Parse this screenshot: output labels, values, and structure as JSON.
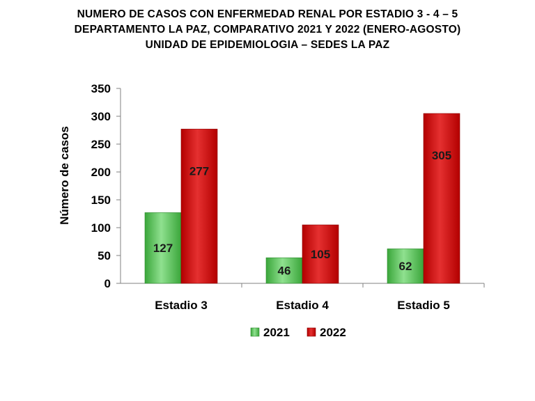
{
  "title_lines": [
    "NUMERO DE CASOS CON ENFERMEDAD RENAL POR ESTADIO 3 - 4 – 5",
    "DEPARTAMENTO LA PAZ, COMPARATIVO 2021 Y 2022 (ENERO-AGOSTO)",
    "UNIDAD DE EPIDEMIOLOGIA – SEDES LA PAZ"
  ],
  "chart_data": {
    "type": "bar",
    "title": "NUMERO DE CASOS CON ENFERMEDAD RENAL POR ESTADIO 3 - 4 – 5 DEPARTAMENTO LA PAZ, COMPARATIVO 2021 Y 2022 (ENERO-AGOSTO) UNIDAD DE EPIDEMIOLOGIA – SEDES LA PAZ",
    "categories": [
      "Estadio 3",
      "Estadio 4",
      "Estadio 5"
    ],
    "series": [
      {
        "name": "2021",
        "values": [
          127,
          46,
          62
        ],
        "color": "#4cbb4c"
      },
      {
        "name": "2022",
        "values": [
          277,
          105,
          305
        ],
        "color": "#cc1111"
      }
    ],
    "xlabel": "",
    "ylabel": "Número de casos",
    "ylim": [
      0,
      350
    ],
    "yticks": [
      0,
      50,
      100,
      150,
      200,
      250,
      300,
      350
    ],
    "grid": false,
    "legend": "bottom",
    "data_labels": true
  }
}
